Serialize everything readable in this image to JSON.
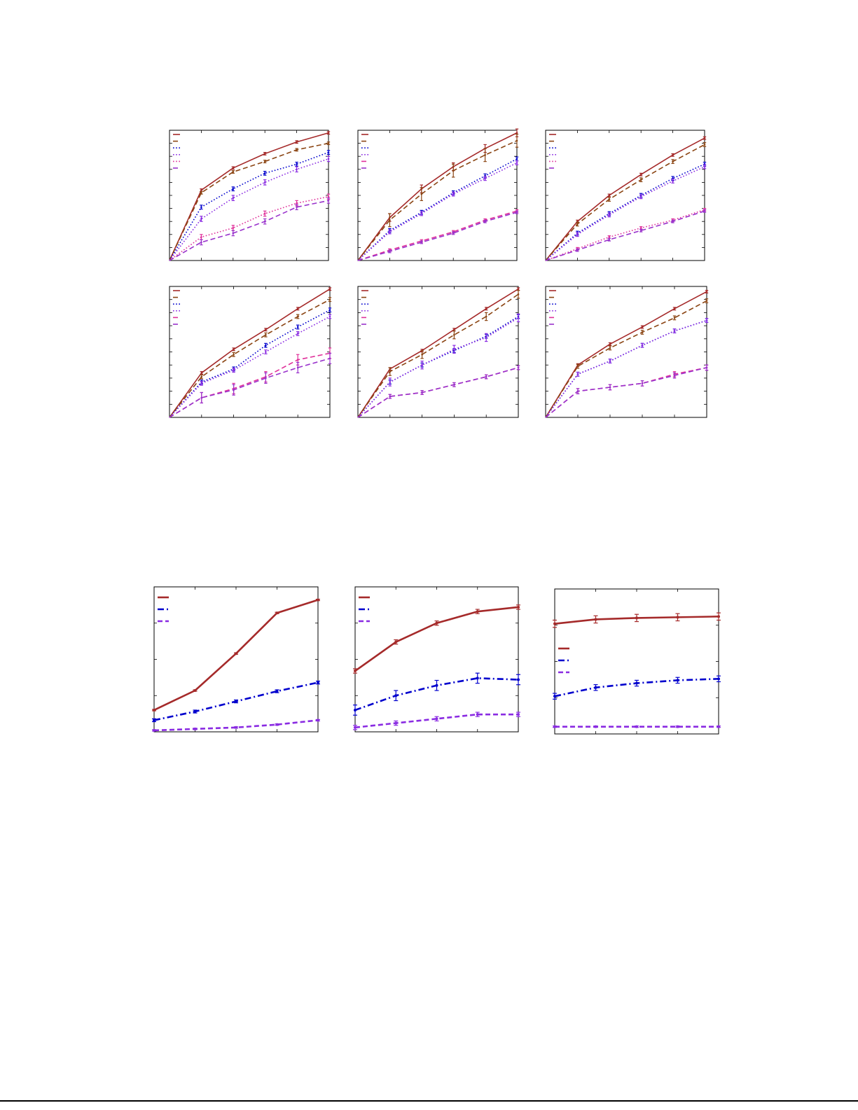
{
  "colors": {
    "red": "#a52a2a",
    "brown": "#8b4513",
    "blue": "#0000cd",
    "purple": "#8a2be2",
    "magenta": "#e0309a",
    "violet": "#9932cc"
  },
  "chart_data": [
    {
      "type": "line",
      "panel": "top-row-1",
      "grid": false,
      "legend": "top-left",
      "x": [
        0,
        1,
        2,
        3,
        4,
        5
      ],
      "ylim": [
        0,
        10
      ],
      "series": [
        {
          "values": [
            0,
            5.4,
            7.1,
            8.2,
            9.1,
            9.8
          ],
          "color": "red",
          "dash": "solid",
          "err": 0.1
        },
        {
          "values": [
            0,
            5.2,
            6.8,
            7.6,
            8.5,
            9.0
          ],
          "color": "brown",
          "dash": "dashed",
          "err": 0.1
        },
        {
          "values": [
            0,
            4.1,
            5.5,
            6.7,
            7.4,
            8.3
          ],
          "color": "blue",
          "dash": "dotted",
          "err": 0.15
        },
        {
          "values": [
            0,
            3.2,
            4.8,
            6.0,
            7.0,
            7.8
          ],
          "color": "purple",
          "dash": "dotted",
          "err": 0.2
        },
        {
          "values": [
            0,
            1.8,
            2.5,
            3.6,
            4.4,
            4.9
          ],
          "color": "magenta",
          "dash": "dotted",
          "err": 0.2
        },
        {
          "values": [
            0,
            1.4,
            2.1,
            3.0,
            4.1,
            4.6
          ],
          "color": "violet",
          "dash": "dashed",
          "err": 0.2
        }
      ]
    },
    {
      "type": "line",
      "panel": "top-row-2",
      "grid": false,
      "legend": "top-left",
      "x": [
        0,
        1,
        2,
        3,
        4,
        5
      ],
      "ylim": [
        0,
        10
      ],
      "series": [
        {
          "values": [
            0,
            3.3,
            5.5,
            7.2,
            8.6,
            9.8
          ],
          "color": "red",
          "dash": "solid",
          "err": 0.3
        },
        {
          "values": [
            0,
            3.1,
            5.1,
            6.9,
            8.1,
            9.2
          ],
          "color": "brown",
          "dash": "dashed",
          "err": 0.5
        },
        {
          "values": [
            0,
            2.3,
            3.7,
            5.2,
            6.5,
            7.8
          ],
          "color": "blue",
          "dash": "dotted",
          "err": 0.15
        },
        {
          "values": [
            0,
            2.2,
            3.6,
            5.1,
            6.3,
            7.5
          ],
          "color": "purple",
          "dash": "dotted",
          "err": 0.15
        },
        {
          "values": [
            0,
            0.8,
            1.5,
            2.2,
            3.1,
            3.8
          ],
          "color": "magenta",
          "dash": "dashed",
          "err": 0.1
        },
        {
          "values": [
            0,
            0.7,
            1.4,
            2.1,
            3.0,
            3.7
          ],
          "color": "violet",
          "dash": "dashed",
          "err": 0.1
        }
      ]
    },
    {
      "type": "line",
      "panel": "top-row-3",
      "grid": false,
      "legend": "top-left",
      "x": [
        0,
        1,
        2,
        3,
        4,
        5
      ],
      "ylim": [
        0,
        10
      ],
      "series": [
        {
          "values": [
            0,
            3.0,
            5.0,
            6.6,
            8.1,
            9.4
          ],
          "color": "red",
          "dash": "solid",
          "err": 0.1
        },
        {
          "values": [
            0,
            2.8,
            4.7,
            6.2,
            7.6,
            8.9
          ],
          "color": "brown",
          "dash": "dashed",
          "err": 0.15
        },
        {
          "values": [
            0,
            2.1,
            3.6,
            5.0,
            6.3,
            7.4
          ],
          "color": "blue",
          "dash": "dotted",
          "err": 0.15
        },
        {
          "values": [
            0,
            2.0,
            3.5,
            4.9,
            6.1,
            7.2
          ],
          "color": "purple",
          "dash": "dotted",
          "err": 0.15
        },
        {
          "values": [
            0,
            0.9,
            1.8,
            2.5,
            3.1,
            3.9
          ],
          "color": "magenta",
          "dash": "dotted",
          "err": 0.1
        },
        {
          "values": [
            0,
            0.8,
            1.6,
            2.3,
            3.0,
            3.8
          ],
          "color": "violet",
          "dash": "dashed",
          "err": 0.1
        }
      ]
    },
    {
      "type": "line",
      "panel": "middle-row-1",
      "grid": false,
      "legend": "top-left",
      "x": [
        0,
        1,
        2,
        3,
        4,
        5
      ],
      "ylim": [
        0,
        10
      ],
      "series": [
        {
          "values": [
            0,
            3.4,
            5.2,
            6.7,
            8.3,
            9.8
          ],
          "color": "red",
          "dash": "solid",
          "err": 0.1
        },
        {
          "values": [
            0,
            3.1,
            4.8,
            6.3,
            7.7,
            9.0
          ],
          "color": "brown",
          "dash": "dashed",
          "err": 0.15
        },
        {
          "values": [
            0,
            2.7,
            3.7,
            5.5,
            6.9,
            8.2
          ],
          "color": "blue",
          "dash": "dotted",
          "err": 0.15
        },
        {
          "values": [
            0,
            2.6,
            3.6,
            5.0,
            6.4,
            7.7
          ],
          "color": "purple",
          "dash": "dotted",
          "err": 0.15
        },
        {
          "values": [
            0,
            1.5,
            2.2,
            3.1,
            4.4,
            4.9
          ],
          "color": "magenta",
          "dash": "dashed",
          "err": 0.4
        },
        {
          "values": [
            0,
            1.5,
            2.1,
            3.0,
            3.8,
            4.5
          ],
          "color": "violet",
          "dash": "dashed",
          "err": 0.4
        }
      ]
    },
    {
      "type": "line",
      "panel": "middle-row-2",
      "grid": false,
      "legend": "top-left",
      "x": [
        0,
        1,
        2,
        3,
        4,
        5
      ],
      "ylim": [
        0,
        10
      ],
      "series": [
        {
          "values": [
            0,
            3.7,
            5.1,
            6.7,
            8.3,
            9.8
          ],
          "color": "red",
          "dash": "solid",
          "err": 0.1
        },
        {
          "values": [
            0,
            3.5,
            4.8,
            6.3,
            7.7,
            9.4
          ],
          "color": "brown",
          "dash": "dashed",
          "err": 0.3
        },
        {
          "values": [
            0,
            2.7,
            4.0,
            5.1,
            6.2,
            7.7
          ],
          "color": "blue",
          "dash": "dotted",
          "err": 0.15
        },
        {
          "values": [
            0,
            2.7,
            4.0,
            5.2,
            6.1,
            7.6
          ],
          "color": "purple",
          "dash": "dotted",
          "err": 0.3
        },
        {
          "values": [
            0,
            1.6,
            1.9,
            2.5,
            3.1,
            3.8
          ],
          "color": "magenta",
          "dash": "dashed",
          "err": 0.15
        },
        {
          "values": [
            0,
            1.6,
            1.9,
            2.5,
            3.1,
            3.8
          ],
          "color": "violet",
          "dash": "dashed",
          "err": 0.15
        }
      ]
    },
    {
      "type": "line",
      "panel": "middle-row-3",
      "grid": false,
      "legend": "top-left",
      "x": [
        0,
        1,
        2,
        3,
        4,
        5
      ],
      "ylim": [
        0,
        10
      ],
      "series": [
        {
          "values": [
            0,
            4.0,
            5.6,
            6.9,
            8.3,
            9.6
          ],
          "color": "red",
          "dash": "solid",
          "err": 0.1
        },
        {
          "values": [
            0,
            3.9,
            5.3,
            6.5,
            7.6,
            8.9
          ],
          "color": "brown",
          "dash": "dashed",
          "err": 0.15
        },
        {
          "values": [
            0,
            3.3,
            4.3,
            5.5,
            6.6,
            7.4
          ],
          "color": "blue",
          "dash": "dotted",
          "err": 0.15
        },
        {
          "values": [
            0,
            3.3,
            4.3,
            5.5,
            6.6,
            7.4
          ],
          "color": "purple",
          "dash": "dotted",
          "err": 0.15
        },
        {
          "values": [
            0,
            2.0,
            2.3,
            2.6,
            3.3,
            3.8
          ],
          "color": "magenta",
          "dash": "dashed",
          "err": 0.2
        },
        {
          "values": [
            0,
            2.0,
            2.3,
            2.6,
            3.2,
            3.8
          ],
          "color": "violet",
          "dash": "dashed",
          "err": 0.2
        }
      ]
    },
    {
      "type": "line",
      "panel": "bottom-row-1",
      "grid": false,
      "legend": "top-left",
      "x": [
        0,
        1,
        2,
        3,
        4
      ],
      "ylim": [
        0,
        10
      ],
      "series": [
        {
          "values": [
            1.5,
            2.85,
            5.4,
            8.2,
            9.1
          ],
          "color": "red",
          "dash": "solid",
          "err": 0.05
        },
        {
          "values": [
            0.8,
            1.4,
            2.1,
            2.8,
            3.4
          ],
          "color": "blue",
          "dash": "dashdot",
          "err": 0.1
        },
        {
          "values": [
            0.1,
            0.2,
            0.3,
            0.5,
            0.8
          ],
          "color": "purple",
          "dash": "dashed",
          "err": 0.05
        }
      ]
    },
    {
      "type": "line",
      "panel": "bottom-row-2",
      "grid": false,
      "legend": "top-left",
      "x": [
        0,
        1,
        2,
        3,
        4
      ],
      "ylim": [
        0,
        10
      ],
      "series": [
        {
          "values": [
            4.2,
            6.2,
            7.5,
            8.3,
            8.6
          ],
          "color": "red",
          "dash": "solid",
          "err": 0.15
        },
        {
          "values": [
            1.5,
            2.5,
            3.2,
            3.7,
            3.6
          ],
          "color": "blue",
          "dash": "dashdot",
          "err": 0.35
        },
        {
          "values": [
            0.3,
            0.6,
            0.9,
            1.2,
            1.2
          ],
          "color": "purple",
          "dash": "dashed",
          "err": 0.15
        }
      ]
    },
    {
      "type": "line",
      "panel": "bottom-row-3",
      "grid": false,
      "legend": "center-left",
      "x": [
        0,
        1,
        2,
        3,
        4
      ],
      "ylim": [
        0,
        10
      ],
      "series": [
        {
          "values": [
            7.6,
            7.9,
            8.0,
            8.05,
            8.1
          ],
          "color": "red",
          "dash": "solid",
          "err": 0.25
        },
        {
          "values": [
            2.6,
            3.2,
            3.5,
            3.7,
            3.8
          ],
          "color": "blue",
          "dash": "dashdot",
          "err": 0.2
        },
        {
          "values": [
            0.5,
            0.5,
            0.5,
            0.5,
            0.5
          ],
          "color": "purple",
          "dash": "dashed",
          "err": 0.05
        }
      ]
    }
  ]
}
